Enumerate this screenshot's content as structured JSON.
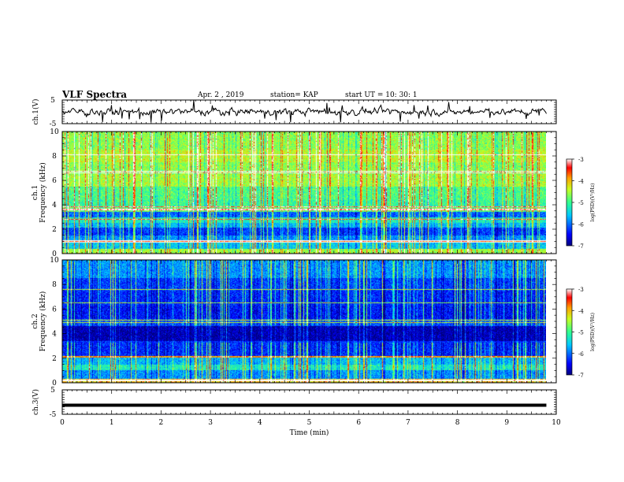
{
  "header": {
    "title": "VLF Spectra",
    "date": "Apr. 2 , 2019",
    "station": "station= KAP",
    "start": "start UT =  10: 30: 1"
  },
  "colors": {
    "colormap": [
      "#00007f",
      "#0000ff",
      "#007fff",
      "#00ffff",
      "#7fff7f",
      "#ffff00",
      "#ff7f00",
      "#ff0000",
      "#ffffff"
    ],
    "trace": "#000000"
  },
  "chart_data": [
    {
      "name": "ch1-waveform",
      "type": "line",
      "ylabel": "ch.1(V)",
      "ylim": [
        -5,
        5
      ],
      "yticks": [
        "5",
        "-5"
      ],
      "xlim": [
        0,
        10
      ],
      "grid": false
    },
    {
      "name": "ch1-spectrogram",
      "type": "heatmap",
      "ylabel_top": "ch.1",
      "ylabel": "Frequency (kHz)",
      "ylim": [
        0,
        10
      ],
      "yticks": [
        "0",
        "2",
        "4",
        "6",
        "8",
        "10"
      ],
      "xlim": [
        0,
        10
      ],
      "data_end_min": 9.8,
      "colorbar": {
        "label": "log(PSD)(V²/Hz)",
        "ticks": [
          "-3",
          "-4",
          "-5",
          "-6",
          "-7"
        ],
        "range": [
          -7,
          -3
        ]
      },
      "band_levels_kHz": [
        [
          0.0,
          0.4,
          -4.5
        ],
        [
          0.4,
          0.9,
          -5.5
        ],
        [
          0.9,
          1.1,
          -3.6
        ],
        [
          1.1,
          1.5,
          -5.8
        ],
        [
          1.5,
          2.1,
          -6.2
        ],
        [
          2.1,
          2.5,
          -5.6
        ],
        [
          2.5,
          3.0,
          -5.2
        ],
        [
          3.0,
          3.4,
          -6.0
        ],
        [
          3.4,
          3.8,
          -4.8
        ],
        [
          3.8,
          4.4,
          -5.0
        ],
        [
          4.4,
          5.5,
          -4.9
        ],
        [
          5.5,
          6.5,
          -4.5
        ],
        [
          6.5,
          7.5,
          -4.6
        ],
        [
          7.5,
          8.5,
          -4.4
        ],
        [
          8.5,
          10.0,
          -4.6
        ]
      ],
      "bright_lines_kHz": [
        0.95,
        1.05,
        2.8,
        3.6,
        3.85,
        6.6,
        6.75,
        8.1
      ]
    },
    {
      "name": "ch2-spectrogram",
      "type": "heatmap",
      "ylabel_top": "ch.2",
      "ylabel": "Frequency (kHz)",
      "ylim": [
        0,
        10
      ],
      "yticks": [
        "0",
        "2",
        "4",
        "6",
        "8",
        "10"
      ],
      "xlim": [
        0,
        10
      ],
      "data_end_min": 9.8,
      "colorbar": {
        "label": "log(PSD)(V²/Hz)",
        "ticks": [
          "-3",
          "-4",
          "-5",
          "-6",
          "-7"
        ],
        "range": [
          -7,
          -3
        ]
      },
      "band_levels_kHz": [
        [
          0.0,
          0.3,
          -4.0
        ],
        [
          0.3,
          1.0,
          -5.8
        ],
        [
          1.0,
          1.5,
          -5.2
        ],
        [
          1.5,
          2.2,
          -5.6
        ],
        [
          2.2,
          3.4,
          -6.3
        ],
        [
          3.4,
          4.6,
          -6.8
        ],
        [
          4.6,
          5.2,
          -6.1
        ],
        [
          5.2,
          6.3,
          -6.4
        ],
        [
          6.3,
          7.5,
          -6.3
        ],
        [
          7.5,
          8.5,
          -6.2
        ],
        [
          8.5,
          10.0,
          -5.8
        ]
      ],
      "bright_lines_kHz": [
        0.2,
        2.1,
        4.9,
        5.1,
        6.5,
        7.6
      ]
    },
    {
      "name": "ch3-waveform",
      "type": "line",
      "ylabel": "ch.3(V)",
      "ylim": [
        -5,
        5
      ],
      "yticks": [
        "5",
        "-5"
      ],
      "xlim": [
        0,
        10
      ],
      "x": [
        0,
        9.8
      ],
      "y": [
        -1.3,
        -1.3
      ],
      "grid": false
    }
  ],
  "x_axis": {
    "label": "Time (min)",
    "ticks": [
      "0",
      "1",
      "2",
      "3",
      "4",
      "5",
      "6",
      "7",
      "8",
      "9",
      "10"
    ]
  }
}
